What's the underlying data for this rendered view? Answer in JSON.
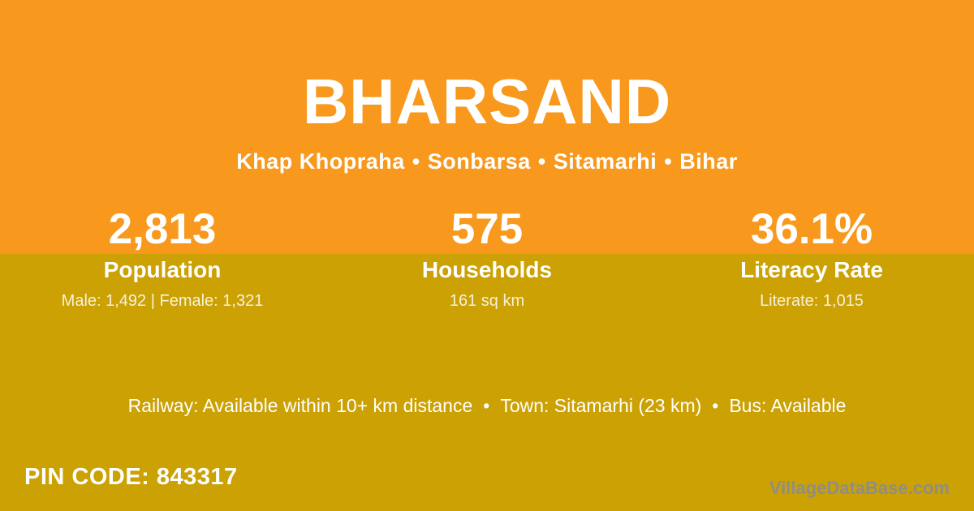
{
  "page": {
    "title": "BHARSAND"
  },
  "location": {
    "parts": [
      "Khap Khopraha",
      "Sonbarsa",
      "Sitamarhi",
      "Bihar"
    ],
    "separator": "•"
  },
  "stats": [
    {
      "value": "2,813",
      "label": "Population",
      "detail": "Male: 1,492 | Female: 1,321"
    },
    {
      "value": "575",
      "label": "Households",
      "detail": "161 sq km"
    },
    {
      "value": "36.1%",
      "label": "Literacy Rate",
      "detail": "Literate: 1,015"
    }
  ],
  "transport": {
    "items": [
      "Railway: Available within 10+ km distance",
      "Town: Sitamarhi (23 km)",
      "Bus: Available"
    ],
    "separator": "•"
  },
  "footer": {
    "pin_code": "PIN CODE: 843317",
    "watermark": "VillageDataBase.com"
  },
  "colors": {
    "header_orange": "#F8981D",
    "body_gold": "#CBA103",
    "text_white": "#FFFFFF",
    "watermark_gray": "#8E8E87"
  }
}
